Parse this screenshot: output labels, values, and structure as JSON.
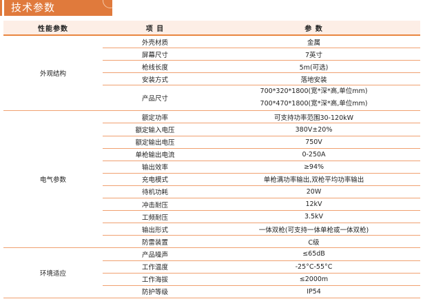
{
  "title": "技术参数",
  "headers": [
    "性能参数",
    "项  目",
    "参  数"
  ],
  "groups": [
    {
      "category": "外观结构",
      "rows": [
        {
          "item": "外壳材质",
          "value": [
            "金属"
          ]
        },
        {
          "item": "屏幕尺寸",
          "value": [
            "7英寸"
          ]
        },
        {
          "item": "枪线长度",
          "value": [
            "5m(可选)"
          ]
        },
        {
          "item": "安装方式",
          "value": [
            "落地安装"
          ]
        },
        {
          "item": "产品尺寸",
          "value": [
            "700*320*1800(宽*深*高,单位mm)",
            "700*470*1800(宽*深*高,单位mm)"
          ]
        }
      ]
    },
    {
      "category": "电气参数",
      "rows": [
        {
          "item": "额定功率",
          "value": [
            "可支持功率范围30-120kW"
          ]
        },
        {
          "item": "额定输入电压",
          "value": [
            "380V±20%"
          ]
        },
        {
          "item": "额定输出电压",
          "value": [
            "750V"
          ]
        },
        {
          "item": "单枪输出电流",
          "value": [
            "0-250A"
          ]
        },
        {
          "item": "输出效率",
          "value": [
            "≥94%"
          ]
        },
        {
          "item": "充电模式",
          "value": [
            "单枪满功率输出,双枪平均功率输出"
          ]
        },
        {
          "item": "待机功耗",
          "value": [
            "20W"
          ]
        },
        {
          "item": "冲击耐压",
          "value": [
            "12kV"
          ]
        },
        {
          "item": "工频耐压",
          "value": [
            "3.5kV"
          ]
        },
        {
          "item": "输出形式",
          "value": [
            "一体双枪(可支持一体单枪或一体双枪)"
          ]
        },
        {
          "item": "防雷装置",
          "value": [
            "C级"
          ]
        }
      ]
    },
    {
      "category": "环境适应",
      "rows": [
        {
          "item": "产品噪声",
          "value": [
            "≤65dB"
          ]
        },
        {
          "item": "工作温度",
          "value": [
            "-25°C-55°C"
          ]
        },
        {
          "item": "工作海拔",
          "value": [
            "≤2000m"
          ]
        },
        {
          "item": "防护等级",
          "value": [
            "IP54"
          ]
        }
      ]
    }
  ],
  "colors": {
    "accent": "#e07a3c",
    "header_bg": "#fdeee6",
    "line": "#f0a070"
  }
}
